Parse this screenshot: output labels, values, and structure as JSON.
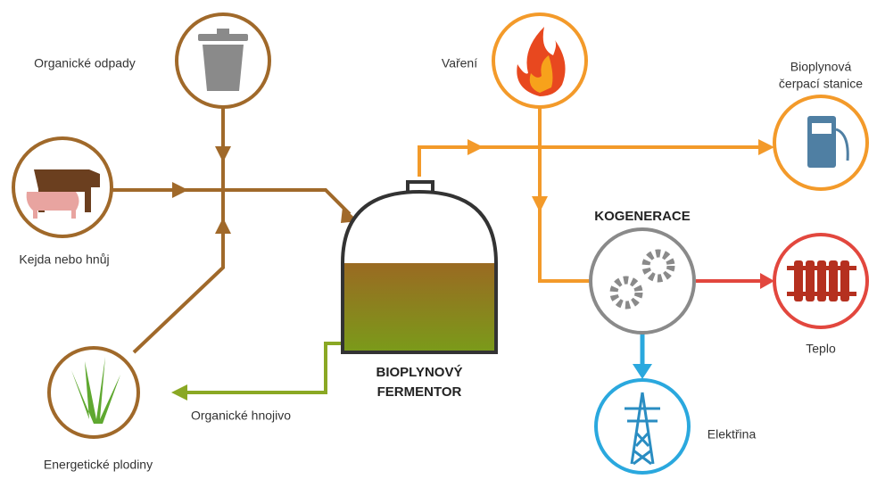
{
  "nodes": [
    {
      "label": "Organické odpady"
    },
    {
      "label": "Kejda nebo hnůj"
    },
    {
      "label": "Energetické plodiny"
    },
    {
      "label": "Organické hnojivo"
    },
    {
      "label": [
        "BIOPLYNOVÝ",
        "FERMENTOR"
      ]
    },
    {
      "label": "Vaření"
    },
    {
      "label": [
        "Bioplynová",
        "čerpací stanice"
      ]
    },
    {
      "label": "KOGENERACE"
    },
    {
      "label": "Teplo"
    },
    {
      "label": "Elektřina"
    }
  ]
}
